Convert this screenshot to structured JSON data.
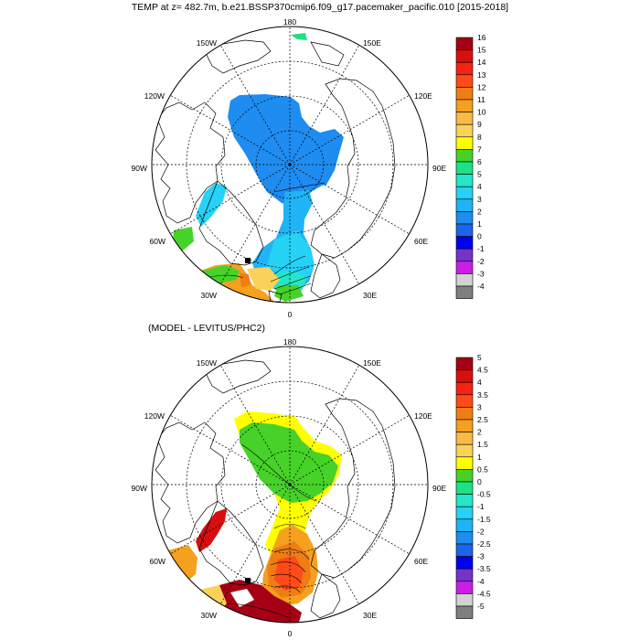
{
  "title": "TEMP at z= 482.7m, b.e21.BSSP370cmip6.f09_g17.pacemaker_pacific.010 [2015-2018]",
  "diff_title": "(MODEL - LEVITUS/PHC2)",
  "longitude_labels": {
    "top": "180",
    "upper_left": "150W",
    "upper_right": "150E",
    "mid_upper_left": "120W",
    "mid_upper_right": "120E",
    "left": "90W",
    "right": "90E",
    "lower_left": "60W",
    "lower_right": "60E",
    "bottom_left": "30W",
    "bottom_right": "30E",
    "bottom": "0"
  },
  "colorbar_top": {
    "labels": [
      "16",
      "15",
      "14",
      "13",
      "12",
      "11",
      "10",
      "9",
      "8",
      "7",
      "6",
      "5",
      "4",
      "3",
      "2",
      "1",
      "0",
      "-1",
      "-2",
      "-3",
      "-4"
    ],
    "colors": [
      "#a50015",
      "#d70f0f",
      "#f52314",
      "#ff4a1a",
      "#f07d14",
      "#f5a01e",
      "#fab946",
      "#fad25a",
      "#ffff00",
      "#46d228",
      "#1ee182",
      "#24e6c8",
      "#26d2f5",
      "#1eb4f5",
      "#1e8cf0",
      "#1e64e6",
      "#0000f0",
      "#7832c8",
      "#c81ee6",
      "#d2d2d2",
      "#7f7f7f"
    ]
  },
  "colorbar_bottom": {
    "labels": [
      "5",
      "4.5",
      "4",
      "3.5",
      "3",
      "2.5",
      "2",
      "1.5",
      "1",
      "0.5",
      "0",
      "-0.5",
      "-1",
      "-1.5",
      "-2",
      "-2.5",
      "-3",
      "-3.5",
      "-4",
      "-4.5",
      "-5"
    ],
    "colors": [
      "#a50015",
      "#d70f0f",
      "#f52314",
      "#ff4a1a",
      "#f07d14",
      "#f5a01e",
      "#fab946",
      "#fad25a",
      "#ffff00",
      "#46d228",
      "#1ee182",
      "#24e6c8",
      "#26d2f5",
      "#1eb4f5",
      "#1e8cf0",
      "#1e64e6",
      "#0000f0",
      "#7832c8",
      "#c81ee6",
      "#d2d2d2",
      "#7f7f7f"
    ]
  }
}
